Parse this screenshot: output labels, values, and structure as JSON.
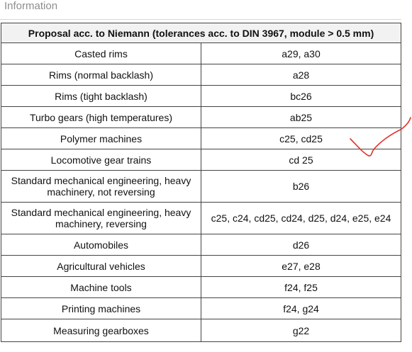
{
  "section": {
    "title": "Information"
  },
  "table": {
    "header": "Proposal acc. to Niemann (tolerances acc. to DIN 3967, module > 0.5 mm)",
    "rows": [
      {
        "application": "Casted rims",
        "tolerance": "a29, a30"
      },
      {
        "application": "Rims (normal backlash)",
        "tolerance": "a28"
      },
      {
        "application": "Rims (tight backlash)",
        "tolerance": "bc26"
      },
      {
        "application": "Turbo gears (high temperatures)",
        "tolerance": "ab25"
      },
      {
        "application": "Polymer machines",
        "tolerance": "c25, cd25"
      },
      {
        "application": "Locomotive gear trains",
        "tolerance": "cd 25"
      },
      {
        "application": "Standard mechanical engineering, heavy machinery, not reversing",
        "tolerance": "b26"
      },
      {
        "application": "Standard mechanical engineering, heavy machinery, reversing",
        "tolerance": "c25, c24, cd25, cd24, d25, d24, e25, e24"
      },
      {
        "application": "Automobiles",
        "tolerance": "d26"
      },
      {
        "application": "Agricultural vehicles",
        "tolerance": "e27, e28"
      },
      {
        "application": "Machine tools",
        "tolerance": "f24, f25"
      },
      {
        "application": "Printing machines",
        "tolerance": "f24, g24"
      },
      {
        "application": "Measuring gearboxes",
        "tolerance": "g22"
      }
    ]
  },
  "annotation": {
    "icon": "handwritten-checkmark-icon",
    "color": "#e0322b"
  }
}
